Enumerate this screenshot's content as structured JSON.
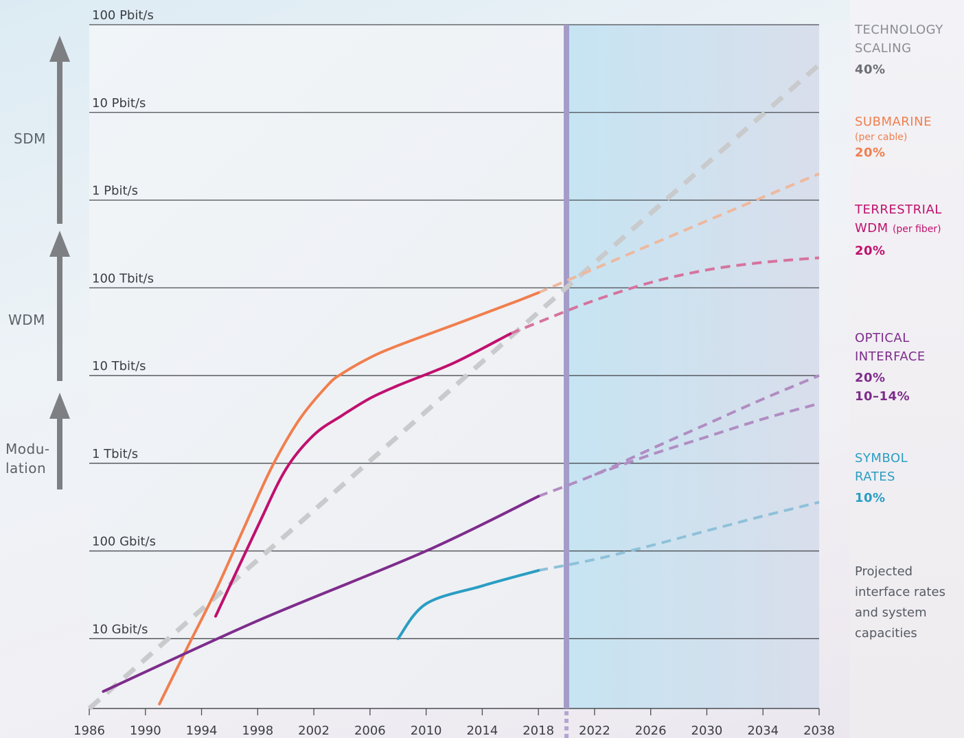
{
  "chart_data": {
    "type": "line",
    "x_ticks": [
      "1986",
      "1990",
      "1994",
      "1998",
      "2002",
      "2006",
      "2010",
      "2014",
      "2018",
      "2022",
      "2026",
      "2030",
      "2034",
      "2038"
    ],
    "y_scale": "log",
    "y_ticks": [
      {
        "gbps": 10,
        "label": "10 Gbit/s"
      },
      {
        "gbps": 100,
        "label": "100 Gbit/s"
      },
      {
        "gbps": 1000,
        "label": "1 Tbit/s"
      },
      {
        "gbps": 10000,
        "label": "10 Tbit/s"
      },
      {
        "gbps": 100000,
        "label": "100 Tbit/s"
      },
      {
        "gbps": 1000000,
        "label": "1 Pbit/s"
      },
      {
        "gbps": 10000000,
        "label": "10 Pbit/s"
      },
      {
        "gbps": 100000000,
        "label": "100 Pbit/s"
      }
    ],
    "xlim": [
      1986,
      2038
    ],
    "ylim_gbps": [
      1.6,
      100000000
    ],
    "divider_year": 2020,
    "series": [
      {
        "key": "technology",
        "color": "#c9cacc",
        "dashed_only": true,
        "width": 7,
        "projected": [
          [
            1986,
            1.6
          ],
          [
            2038,
            35000000
          ]
        ]
      },
      {
        "key": "submarine",
        "color": "#f07f4e",
        "proj_color": "#eeb89e",
        "width": 4,
        "measured": [
          [
            1991,
            1.8
          ],
          [
            1993,
            8
          ],
          [
            1995,
            35
          ],
          [
            1997,
            180
          ],
          [
            1999,
            900
          ],
          [
            2001,
            3200
          ],
          [
            2003,
            7800
          ],
          [
            2004,
            10500
          ],
          [
            2006,
            16000
          ],
          [
            2008,
            22000
          ],
          [
            2012,
            38000
          ],
          [
            2016,
            66000
          ],
          [
            2018,
            88000
          ]
        ],
        "projected": [
          [
            2018,
            88000
          ],
          [
            2022,
            165000
          ],
          [
            2026,
            310000
          ],
          [
            2030,
            580000
          ],
          [
            2034,
            1080000
          ],
          [
            2038,
            2000000
          ]
        ]
      },
      {
        "key": "terrestrial",
        "color": "#c0106e",
        "proj_color": "#d6739e",
        "width": 4,
        "measured": [
          [
            1995,
            18
          ],
          [
            1998,
            190
          ],
          [
            2000,
            850
          ],
          [
            2002,
            2100
          ],
          [
            2004,
            3500
          ],
          [
            2006,
            5500
          ],
          [
            2008,
            7700
          ],
          [
            2012,
            14000
          ],
          [
            2016,
            30000
          ]
        ],
        "projected": [
          [
            2016,
            30000
          ],
          [
            2019,
            47000
          ],
          [
            2022,
            72000
          ],
          [
            2026,
            115000
          ],
          [
            2030,
            160000
          ],
          [
            2034,
            195000
          ],
          [
            2038,
            220000
          ]
        ]
      },
      {
        "key": "optical_20",
        "color": "#7e2c8c",
        "proj_color": "#b08dc2",
        "width": 4,
        "measured": [
          [
            1987,
            2.5
          ],
          [
            1998,
            16
          ],
          [
            2010,
            100
          ],
          [
            2018,
            420
          ]
        ],
        "projected": [
          [
            2018,
            420
          ],
          [
            2022,
            740
          ],
          [
            2026,
            1450
          ],
          [
            2030,
            2800
          ],
          [
            2034,
            5400
          ],
          [
            2038,
            10000
          ]
        ]
      },
      {
        "key": "optical_10_14",
        "color": "#7e2c8c",
        "proj_color": "#b08dc2",
        "dashed_only": true,
        "width": 4,
        "projected": [
          [
            2022,
            740
          ],
          [
            2026,
            1250
          ],
          [
            2030,
            2000
          ],
          [
            2034,
            3200
          ],
          [
            2038,
            4800
          ]
        ]
      },
      {
        "key": "symbol",
        "color": "#2a9dc3",
        "proj_color": "#8fc1d9",
        "width": 4,
        "measured": [
          [
            2008,
            10
          ],
          [
            2010,
            25
          ],
          [
            2014,
            40
          ],
          [
            2018,
            60
          ]
        ],
        "projected": [
          [
            2018,
            60
          ],
          [
            2022,
            80
          ],
          [
            2026,
            115
          ],
          [
            2030,
            170
          ],
          [
            2034,
            250
          ],
          [
            2038,
            360
          ]
        ]
      }
    ]
  },
  "tech_arrows": [
    {
      "label_lines": [
        "SDM"
      ],
      "color": "#5b6168"
    },
    {
      "label_lines": [
        "WDM"
      ],
      "color": "#5b6168"
    },
    {
      "label_lines": [
        "Modu-",
        "lation"
      ],
      "color": "#5b6168"
    }
  ],
  "legend": {
    "technology": {
      "line1": "TECHNOLOGY",
      "line2": "SCALING",
      "pct": "40%",
      "color": "#8a8d92",
      "pct_color": "#6b6e73"
    },
    "submarine": {
      "line1": "SUBMARINE",
      "sub": "(per cable)",
      "pct": "20%",
      "color": "#f07f4e"
    },
    "terrestrial": {
      "line1": "TERRESTRIAL",
      "line2a": "WDM",
      "line2b": "(per fiber)",
      "pct": "20%",
      "color": "#c0106e"
    },
    "optical": {
      "line1": "OPTICAL",
      "line2": "INTERFACE",
      "pct1": "20%",
      "pct2": "10–14%",
      "color": "#7e2c8c"
    },
    "symbol": {
      "line1": "SYMBOL",
      "line2": "RATES",
      "pct": "10%",
      "color": "#2a9dc3"
    }
  },
  "note": {
    "lines": [
      "Projected",
      "interface rates",
      "and system",
      "capacities"
    ]
  }
}
